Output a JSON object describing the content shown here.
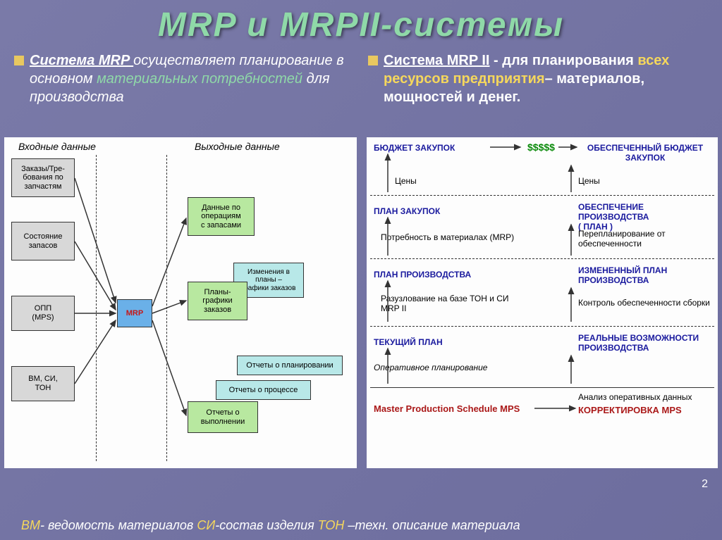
{
  "title": "MRP и  MRPII-системы",
  "left_bullet": {
    "p1": " Система  MRP ",
    "p2": "осуществляет планирование в основном ",
    "p3": "материальных потребностей",
    "p4": " для производства"
  },
  "right_bullet": {
    "p1": "Система MRP II",
    "p2": " - для планирования ",
    "p3": "всех ресурсов предприятия",
    "p4": "– материалов, мощностей и денег."
  },
  "left_diagram": {
    "hdr_in": "Входные данные",
    "hdr_out": "Выходные данные",
    "boxes": {
      "orders": "Заказы/Тре-\nбования по\nзапчастям",
      "stock": "Состояние\nзапасов",
      "opp": "ОПП\n(MPS)",
      "bm": "ВМ, СИ,\nТОН",
      "mrp": "MRP",
      "data_ops": "Данные по\nоперациям\nс запасами",
      "changes": "Изменения в\nпланы –\nграфики заказов",
      "plans": "Планы-\nграфики\nзаказов",
      "rep_plan": "Отчеты о планировании",
      "rep_proc": "Отчеты о процессе",
      "rep_exec": "Отчеты о\nвыполнении"
    },
    "colors": {
      "gray": "#d8d8d8",
      "green": "#b8e8a0",
      "lightblue": "#b8e8e8",
      "mrpblue": "#6ab0e8"
    }
  },
  "right_diagram": {
    "rows": [
      {
        "left": "БЮДЖЕТ ЗАКУПОК",
        "right": "ОБЕСПЕЧЕННЫЙ БЮДЖЕТ\nЗАКУПОК",
        "sub_l": "Цены",
        "sub_r": "Цены",
        "mid": "$$$$$"
      },
      {
        "left": "ПЛАН ЗАКУПОК",
        "right": "ОБЕСПЕЧЕНИЕ ПРОИЗВОДСТВА\n( ПЛАН )",
        "sub_l": "Потребность в материалах (MRP)",
        "sub_r": "Перепланирование от\nобеспеченности"
      },
      {
        "left": "ПЛАН ПРОИЗВОДСТВА",
        "right": "ИЗМЕНЕННЫЙ ПЛАН\nПРОИЗВОДСТВА",
        "sub_l": "Разузлование на базе ТОН и СИ\nMRP II",
        "sub_r": "Контроль обеспеченности сборки"
      },
      {
        "left": "ТЕКУЩИЙ ПЛАН",
        "right": "РЕАЛЬНЫЕ ВОЗМОЖНОСТИ\nПРОИЗВОДСТВА",
        "sub_l": "Оперативное планирование",
        "sub_r": ""
      }
    ],
    "bottom_l": "Master Production Schedule MPS",
    "bottom_r_1": "Анализ оперативных данных",
    "bottom_r_2": "КОРРЕКТИРОВКА MPS"
  },
  "footer": {
    "bm": "ВМ",
    "bm_t": "- ведомость материалов ",
    "si": "СИ",
    "si_t": "-состав изделия ",
    "ton": "ТОН",
    "ton_t": " –техн. описание материала"
  },
  "page": "2"
}
